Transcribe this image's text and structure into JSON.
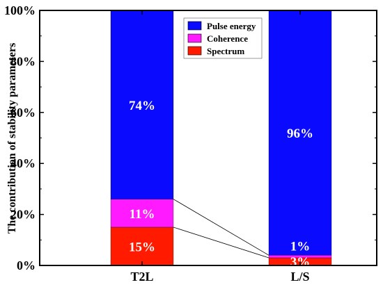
{
  "chart_data": {
    "type": "bar",
    "stacked": true,
    "percent": true,
    "categories": [
      "T2L",
      "L/S"
    ],
    "series": [
      {
        "name": "Spectrum",
        "values": [
          15,
          3
        ],
        "labels": [
          "15%",
          "3%"
        ],
        "color": "#ff1a00"
      },
      {
        "name": "Coherence",
        "values": [
          11,
          1
        ],
        "labels": [
          "11%",
          "1%"
        ],
        "color": "#ff1aff"
      },
      {
        "name": "Pulse energy",
        "values": [
          74,
          96
        ],
        "labels": [
          "74%",
          "96%"
        ],
        "color": "#0a0aff"
      }
    ],
    "ylabel": "The contribution of stability parameters",
    "xlabel": "",
    "ylim": [
      0,
      100
    ],
    "yticks": [
      0,
      20,
      40,
      60,
      80,
      100
    ],
    "ytick_labels": [
      "0%",
      "20%",
      "40%",
      "60%",
      "80%",
      "100%"
    ],
    "legend": {
      "placement": "top-right",
      "entries": [
        "Pulse energy",
        "Coherence",
        "Spectrum"
      ]
    },
    "connector_lines": true,
    "grid": false
  }
}
